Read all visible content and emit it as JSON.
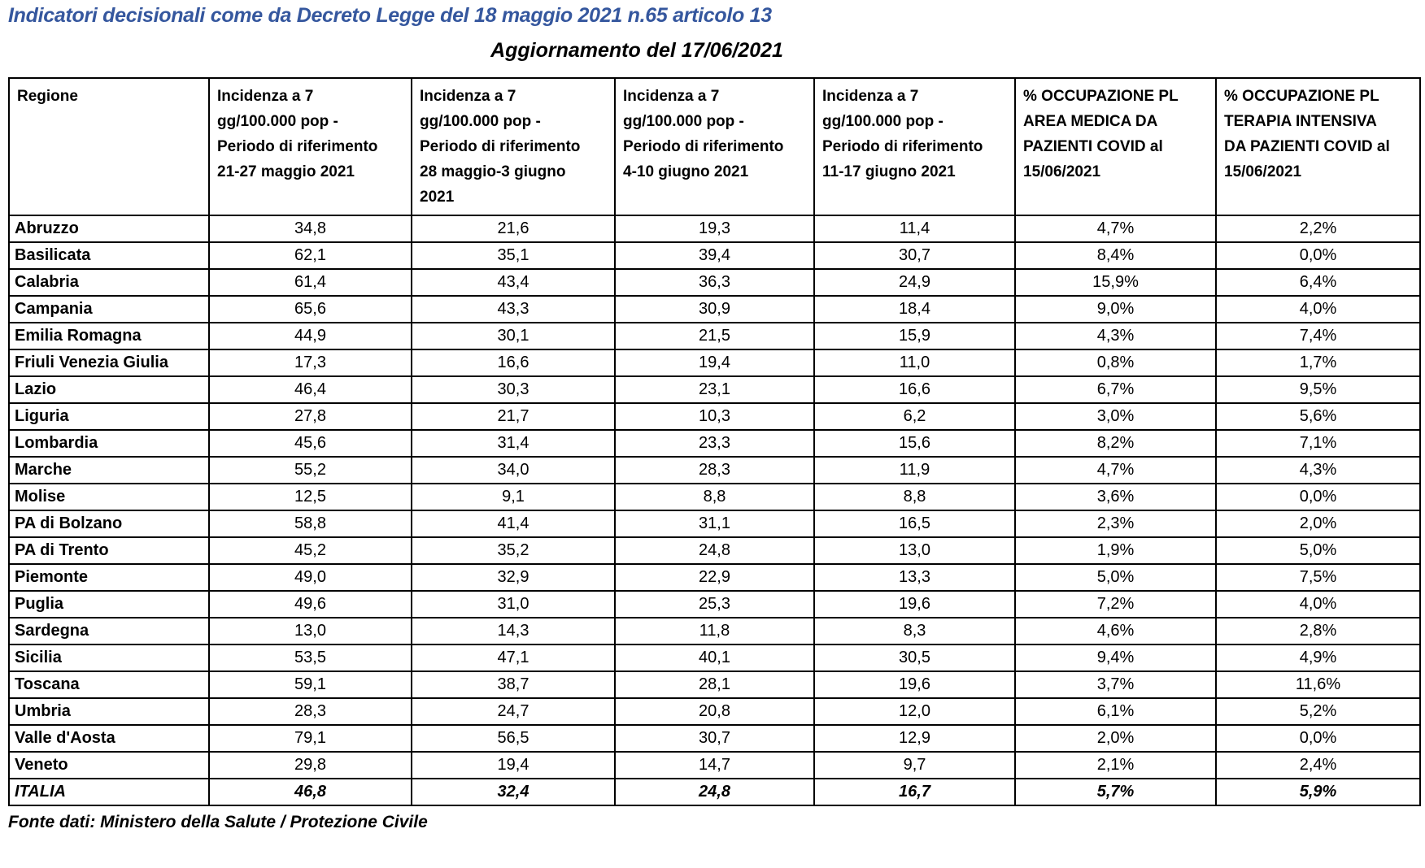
{
  "title": "Indicatori decisionali come da Decreto Legge del 18 maggio 2021 n.65 articolo 13",
  "subtitle": "Aggiornamento del 17/06/2021",
  "footer": "Fonte dati: Ministero della Salute / Protezione Civile",
  "colors": {
    "title_blue": "#35579E",
    "text": "#000000",
    "table_border": "#000000",
    "background": "#ffffff"
  },
  "table": {
    "columns": [
      {
        "id": "regione",
        "lines": [
          "Regione"
        ]
      },
      {
        "id": "incidenza-21-27-maggio-2021",
        "lines": [
          "Incidenza a 7",
          "gg/100.000 pop -",
          "Periodo di riferimento",
          "21-27 maggio 2021"
        ]
      },
      {
        "id": "incidenza-28-maggio-3-giugno-2021",
        "lines": [
          "Incidenza a 7",
          "gg/100.000 pop -",
          "Periodo di riferimento",
          "28 maggio-3 giugno",
          "2021"
        ]
      },
      {
        "id": "incidenza-4-10-giugno-2021",
        "lines": [
          "Incidenza a 7",
          "gg/100.000 pop -",
          "Periodo di riferimento",
          "4-10 giugno 2021"
        ]
      },
      {
        "id": "incidenza-11-17-giugno-2021",
        "lines": [
          "Incidenza a 7",
          "gg/100.000 pop -",
          "Periodo di riferimento",
          "11-17 giugno 2021"
        ]
      },
      {
        "id": "occupazione-area-medica",
        "lines": [
          "% OCCUPAZIONE PL",
          "AREA MEDICA DA",
          "PAZIENTI COVID al",
          "15/06/2021"
        ]
      },
      {
        "id": "occupazione-terapia-intensiva",
        "lines": [
          "% OCCUPAZIONE PL",
          "TERAPIA INTENSIVA",
          "DA PAZIENTI COVID al",
          "15/06/2021"
        ]
      }
    ],
    "rows": [
      {
        "region": "Abruzzo",
        "values": [
          "34,8",
          "21,6",
          "19,3",
          "11,4",
          "4,7%",
          "2,2%"
        ]
      },
      {
        "region": "Basilicata",
        "values": [
          "62,1",
          "35,1",
          "39,4",
          "30,7",
          "8,4%",
          "0,0%"
        ]
      },
      {
        "region": "Calabria",
        "values": [
          "61,4",
          "43,4",
          "36,3",
          "24,9",
          "15,9%",
          "6,4%"
        ]
      },
      {
        "region": "Campania",
        "values": [
          "65,6",
          "43,3",
          "30,9",
          "18,4",
          "9,0%",
          "4,0%"
        ]
      },
      {
        "region": "Emilia Romagna",
        "values": [
          "44,9",
          "30,1",
          "21,5",
          "15,9",
          "4,3%",
          "7,4%"
        ]
      },
      {
        "region": "Friuli Venezia Giulia",
        "values": [
          "17,3",
          "16,6",
          "19,4",
          "11,0",
          "0,8%",
          "1,7%"
        ]
      },
      {
        "region": "Lazio",
        "values": [
          "46,4",
          "30,3",
          "23,1",
          "16,6",
          "6,7%",
          "9,5%"
        ]
      },
      {
        "region": "Liguria",
        "values": [
          "27,8",
          "21,7",
          "10,3",
          "6,2",
          "3,0%",
          "5,6%"
        ]
      },
      {
        "region": "Lombardia",
        "values": [
          "45,6",
          "31,4",
          "23,3",
          "15,6",
          "8,2%",
          "7,1%"
        ]
      },
      {
        "region": "Marche",
        "values": [
          "55,2",
          "34,0",
          "28,3",
          "11,9",
          "4,7%",
          "4,3%"
        ]
      },
      {
        "region": "Molise",
        "values": [
          "12,5",
          "9,1",
          "8,8",
          "8,8",
          "3,6%",
          "0,0%"
        ]
      },
      {
        "region": "PA di Bolzano",
        "values": [
          "58,8",
          "41,4",
          "31,1",
          "16,5",
          "2,3%",
          "2,0%"
        ]
      },
      {
        "region": "PA di Trento",
        "values": [
          "45,2",
          "35,2",
          "24,8",
          "13,0",
          "1,9%",
          "5,0%"
        ]
      },
      {
        "region": "Piemonte",
        "values": [
          "49,0",
          "32,9",
          "22,9",
          "13,3",
          "5,0%",
          "7,5%"
        ]
      },
      {
        "region": "Puglia",
        "values": [
          "49,6",
          "31,0",
          "25,3",
          "19,6",
          "7,2%",
          "4,0%"
        ]
      },
      {
        "region": "Sardegna",
        "values": [
          "13,0",
          "14,3",
          "11,8",
          "8,3",
          "4,6%",
          "2,8%"
        ]
      },
      {
        "region": "Sicilia",
        "values": [
          "53,5",
          "47,1",
          "40,1",
          "30,5",
          "9,4%",
          "4,9%"
        ]
      },
      {
        "region": "Toscana",
        "values": [
          "59,1",
          "38,7",
          "28,1",
          "19,6",
          "3,7%",
          "11,6%"
        ]
      },
      {
        "region": "Umbria",
        "values": [
          "28,3",
          "24,7",
          "20,8",
          "12,0",
          "6,1%",
          "5,2%"
        ]
      },
      {
        "region": "Valle d'Aosta",
        "values": [
          "79,1",
          "56,5",
          "30,7",
          "12,9",
          "2,0%",
          "0,0%"
        ]
      },
      {
        "region": "Veneto",
        "values": [
          "29,8",
          "19,4",
          "14,7",
          "9,7",
          "2,1%",
          "2,4%"
        ]
      }
    ],
    "total_row": {
      "region": "ITALIA",
      "values": [
        "46,8",
        "32,4",
        "24,8",
        "16,7",
        "5,7%",
        "5,9%"
      ]
    }
  }
}
